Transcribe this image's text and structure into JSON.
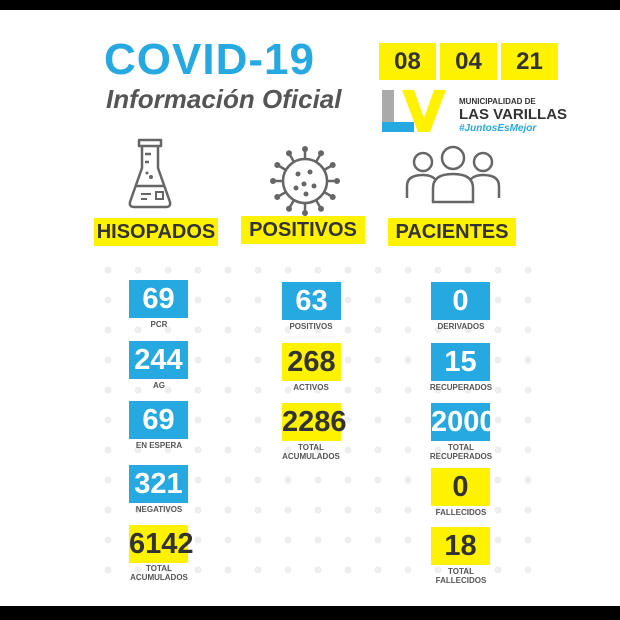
{
  "header": {
    "title": "COVID-19",
    "subtitle": "Información Oficial",
    "date": [
      "08",
      "04",
      "21"
    ]
  },
  "brand": {
    "line1": "MUNICIPALIDAD DE",
    "line2": "LAS VARILLAS",
    "tagline": "#JuntosEsMejor"
  },
  "categories": {
    "hisopados": "HISOPADOS",
    "positivos": "POSITIVOS",
    "pacientes": "PACIENTES"
  },
  "icons": {
    "hisopados": "flask-icon",
    "positivos": "virus-icon",
    "pacientes": "people-icon"
  },
  "hisopados": [
    {
      "value": "69",
      "label": "PCR"
    },
    {
      "value": "244",
      "label": "AG"
    },
    {
      "value": "69",
      "label": "EN ESPERA"
    },
    {
      "value": "321",
      "label": "NEGATIVOS"
    },
    {
      "value": "6142",
      "label": "TOTAL",
      "label2": "ACUMULADOS"
    }
  ],
  "positivos": [
    {
      "value": "63",
      "label": "POSITIVOS"
    },
    {
      "value": "268",
      "label": "ACTIVOS"
    },
    {
      "value": "2286",
      "label": "TOTAL",
      "label2": "ACUMULADOS"
    }
  ],
  "pacientes": [
    {
      "value": "0",
      "label": "DERIVADOS"
    },
    {
      "value": "15",
      "label": "RECUPERADOS"
    },
    {
      "value": "2000",
      "label": "TOTAL",
      "label2": "RECUPERADOS"
    },
    {
      "value": "0",
      "label": "FALLECIDOS"
    },
    {
      "value": "18",
      "label": "TOTAL",
      "label2": "FALLECIDOS"
    }
  ],
  "colors": {
    "accent_blue": "#26a9e0",
    "accent_yellow": "#fff200",
    "logo_gray": "#aaaaaa",
    "text_dark": "#333333"
  }
}
